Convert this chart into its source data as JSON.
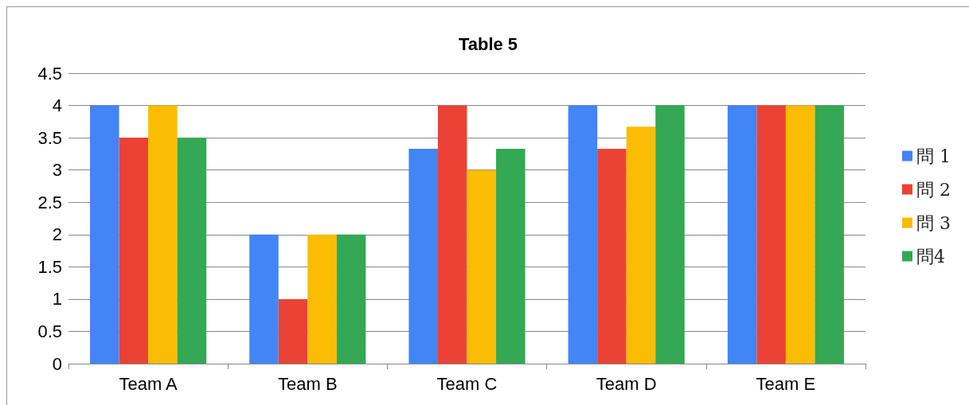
{
  "chart_data": {
    "type": "bar",
    "title": "Table 5",
    "categories": [
      "Team A",
      "Team B",
      "Team C",
      "Team D",
      "Team E"
    ],
    "series": [
      {
        "name": "問 1",
        "color": "#4285f4",
        "values": [
          4,
          2,
          3.33,
          4,
          4
        ]
      },
      {
        "name": "問 2",
        "color": "#ea4335",
        "values": [
          3.5,
          1,
          4,
          3.33,
          4
        ]
      },
      {
        "name": "問 3",
        "color": "#fbbc04",
        "values": [
          4,
          2,
          3,
          3.67,
          4
        ]
      },
      {
        "name": "問4",
        "color": "#34a853",
        "values": [
          3.5,
          2,
          3.33,
          4,
          4
        ]
      }
    ],
    "ylim": [
      0,
      4.5
    ],
    "yticks": [
      0,
      0.5,
      1,
      1.5,
      2,
      2.5,
      3,
      3.5,
      4,
      4.5
    ],
    "grid": "y",
    "legend": "right"
  }
}
